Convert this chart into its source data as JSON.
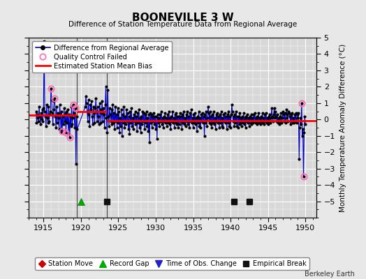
{
  "title": "BOONEVILLE 3 W",
  "subtitle": "Difference of Station Temperature Data from Regional Average",
  "ylabel": "Monthly Temperature Anomaly Difference (°C)",
  "xlim": [
    1913.0,
    1951.5
  ],
  "ylim": [
    -6,
    5
  ],
  "yticks": [
    -5,
    -4,
    -3,
    -2,
    -1,
    0,
    1,
    2,
    3,
    4,
    5
  ],
  "xticks": [
    1915,
    1920,
    1925,
    1930,
    1935,
    1940,
    1945,
    1950
  ],
  "bg_color": "#e8e8e8",
  "plot_bg_color": "#d8d8d8",
  "grid_color": "#ffffff",
  "line_color": "#0000cc",
  "dot_color": "#000000",
  "bias_color": "#ff0000",
  "qc_color": "#ff69b4",
  "watermark": "Berkeley Earth",
  "segments": [
    {
      "x_start": 1913.0,
      "x_end": 1919.5,
      "bias": 0.28
    },
    {
      "x_start": 1919.5,
      "x_end": 1923.5,
      "bias": 0.48
    },
    {
      "x_start": 1923.5,
      "x_end": 1951.5,
      "bias": -0.08
    }
  ],
  "vertical_lines": [
    1919.5,
    1923.5
  ],
  "record_gap_x": 1920.0,
  "empirical_breaks": [
    1923.5,
    1940.5,
    1942.5
  ],
  "qc_points": [
    [
      1916.0,
      1.9
    ],
    [
      1916.5,
      1.3
    ],
    [
      1917.5,
      -0.7
    ],
    [
      1918.0,
      -0.8
    ],
    [
      1918.5,
      -1.1
    ],
    [
      1919.0,
      0.9
    ],
    [
      1919.25,
      0.7
    ],
    [
      1949.5,
      1.0
    ],
    [
      1949.75,
      -3.5
    ]
  ],
  "data": [
    [
      1914.0,
      0.5
    ],
    [
      1914.083,
      -0.2
    ],
    [
      1914.167,
      0.3
    ],
    [
      1914.25,
      0.1
    ],
    [
      1914.333,
      -0.1
    ],
    [
      1914.417,
      0.8
    ],
    [
      1914.5,
      0.2
    ],
    [
      1914.583,
      -0.3
    ],
    [
      1914.667,
      0.4
    ],
    [
      1914.75,
      0.0
    ],
    [
      1914.833,
      0.6
    ],
    [
      1914.917,
      -0.1
    ],
    [
      1915.0,
      0.7
    ],
    [
      1915.083,
      4.8
    ],
    [
      1915.167,
      0.5
    ],
    [
      1915.25,
      0.2
    ],
    [
      1915.333,
      -0.4
    ],
    [
      1915.417,
      0.9
    ],
    [
      1915.5,
      0.1
    ],
    [
      1915.583,
      -0.2
    ],
    [
      1915.667,
      0.8
    ],
    [
      1915.75,
      -0.1
    ],
    [
      1915.833,
      0.3
    ],
    [
      1915.917,
      0.5
    ],
    [
      1916.0,
      1.9
    ],
    [
      1916.083,
      1.2
    ],
    [
      1916.167,
      0.4
    ],
    [
      1916.25,
      -0.3
    ],
    [
      1916.333,
      0.6
    ],
    [
      1916.417,
      1.1
    ],
    [
      1916.5,
      1.3
    ],
    [
      1916.583,
      0.2
    ],
    [
      1916.667,
      -0.5
    ],
    [
      1916.75,
      0.8
    ],
    [
      1916.833,
      -0.2
    ],
    [
      1916.917,
      0.4
    ],
    [
      1917.0,
      0.1
    ],
    [
      1917.083,
      -0.6
    ],
    [
      1917.167,
      0.9
    ],
    [
      1917.25,
      0.3
    ],
    [
      1917.333,
      -0.8
    ],
    [
      1917.417,
      0.5
    ],
    [
      1917.5,
      -0.7
    ],
    [
      1917.583,
      0.2
    ],
    [
      1917.667,
      -0.3
    ],
    [
      1917.75,
      0.7
    ],
    [
      1917.833,
      -0.1
    ],
    [
      1917.917,
      0.4
    ],
    [
      1918.0,
      -0.8
    ],
    [
      1918.083,
      0.5
    ],
    [
      1918.167,
      -0.2
    ],
    [
      1918.25,
      0.6
    ],
    [
      1918.333,
      -0.9
    ],
    [
      1918.417,
      0.3
    ],
    [
      1918.5,
      -1.1
    ],
    [
      1918.583,
      0.2
    ],
    [
      1918.667,
      -0.4
    ],
    [
      1918.75,
      0.8
    ],
    [
      1918.833,
      -0.3
    ],
    [
      1918.917,
      0.1
    ],
    [
      1919.0,
      0.9
    ],
    [
      1919.083,
      0.4
    ],
    [
      1919.167,
      -0.5
    ],
    [
      1919.25,
      0.7
    ],
    [
      1919.333,
      -2.7
    ],
    [
      1919.417,
      0.2
    ],
    [
      1919.5,
      -0.6
    ],
    [
      1920.583,
      0.8
    ],
    [
      1920.667,
      1.4
    ],
    [
      1920.75,
      1.0
    ],
    [
      1920.833,
      0.5
    ],
    [
      1920.917,
      -0.1
    ],
    [
      1921.0,
      1.2
    ],
    [
      1921.083,
      0.3
    ],
    [
      1921.167,
      -0.4
    ],
    [
      1921.25,
      0.9
    ],
    [
      1921.333,
      0.6
    ],
    [
      1921.417,
      1.1
    ],
    [
      1921.5,
      0.2
    ],
    [
      1921.583,
      -0.3
    ],
    [
      1921.667,
      0.8
    ],
    [
      1921.75,
      0.4
    ],
    [
      1921.833,
      -0.2
    ],
    [
      1921.917,
      0.7
    ],
    [
      1922.0,
      1.3
    ],
    [
      1922.083,
      0.5
    ],
    [
      1922.167,
      -0.1
    ],
    [
      1922.25,
      0.8
    ],
    [
      1922.333,
      0.2
    ],
    [
      1922.417,
      -0.3
    ],
    [
      1922.5,
      1.0
    ],
    [
      1922.583,
      0.6
    ],
    [
      1922.667,
      -0.2
    ],
    [
      1922.75,
      0.4
    ],
    [
      1922.833,
      1.1
    ],
    [
      1922.917,
      -0.1
    ],
    [
      1923.0,
      0.7
    ],
    [
      1923.083,
      0.3
    ],
    [
      1923.167,
      -0.5
    ],
    [
      1923.25,
      0.9
    ],
    [
      1923.333,
      2.0
    ],
    [
      1923.417,
      0.1
    ],
    [
      1923.5,
      -0.8
    ],
    [
      1923.583,
      1.8
    ],
    [
      1923.667,
      0.2
    ],
    [
      1923.75,
      -0.4
    ],
    [
      1923.833,
      0.7
    ],
    [
      1923.917,
      0.3
    ],
    [
      1924.0,
      -0.1
    ],
    [
      1924.083,
      0.6
    ],
    [
      1924.167,
      -0.3
    ],
    [
      1924.25,
      0.9
    ],
    [
      1924.333,
      -0.2
    ],
    [
      1924.417,
      0.4
    ],
    [
      1924.5,
      -0.6
    ],
    [
      1924.583,
      0.8
    ],
    [
      1924.667,
      -0.1
    ],
    [
      1924.75,
      0.3
    ],
    [
      1924.833,
      -0.5
    ],
    [
      1924.917,
      0.7
    ],
    [
      1925.0,
      -0.2
    ],
    [
      1925.083,
      0.5
    ],
    [
      1925.167,
      -0.8
    ],
    [
      1925.25,
      0.1
    ],
    [
      1925.333,
      -0.4
    ],
    [
      1925.417,
      0.6
    ],
    [
      1925.5,
      -1.0
    ],
    [
      1925.583,
      0.3
    ],
    [
      1925.667,
      -0.2
    ],
    [
      1925.75,
      0.8
    ],
    [
      1925.833,
      -0.5
    ],
    [
      1925.917,
      0.2
    ],
    [
      1926.0,
      -0.3
    ],
    [
      1926.083,
      0.6
    ],
    [
      1926.167,
      -0.1
    ],
    [
      1926.25,
      0.4
    ],
    [
      1926.333,
      -0.6
    ],
    [
      1926.417,
      0.2
    ],
    [
      1926.5,
      -0.9
    ],
    [
      1926.583,
      0.5
    ],
    [
      1926.667,
      -0.2
    ],
    [
      1926.75,
      0.7
    ],
    [
      1926.833,
      -0.4
    ],
    [
      1926.917,
      0.1
    ],
    [
      1927.0,
      -0.6
    ],
    [
      1927.083,
      0.3
    ],
    [
      1927.167,
      -0.1
    ],
    [
      1927.25,
      0.5
    ],
    [
      1927.333,
      -0.3
    ],
    [
      1927.417,
      0.2
    ],
    [
      1927.5,
      -0.7
    ],
    [
      1927.583,
      0.4
    ],
    [
      1927.667,
      -0.2
    ],
    [
      1927.75,
      0.6
    ],
    [
      1927.833,
      -0.5
    ],
    [
      1927.917,
      0.1
    ],
    [
      1928.0,
      -0.8
    ],
    [
      1928.083,
      0.2
    ],
    [
      1928.167,
      -0.3
    ],
    [
      1928.25,
      0.5
    ],
    [
      1928.333,
      -0.1
    ],
    [
      1928.417,
      0.4
    ],
    [
      1928.5,
      -0.6
    ],
    [
      1928.583,
      0.3
    ],
    [
      1928.667,
      -0.2
    ],
    [
      1928.75,
      0.5
    ],
    [
      1928.833,
      -0.4
    ],
    [
      1928.917,
      0.1
    ],
    [
      1929.0,
      -0.7
    ],
    [
      1929.083,
      0.3
    ],
    [
      1929.167,
      -1.4
    ],
    [
      1929.25,
      0.4
    ],
    [
      1929.333,
      -0.2
    ],
    [
      1929.417,
      0.3
    ],
    [
      1929.5,
      -0.5
    ],
    [
      1929.583,
      0.2
    ],
    [
      1929.667,
      -0.1
    ],
    [
      1929.75,
      0.4
    ],
    [
      1929.833,
      -0.3
    ],
    [
      1929.917,
      0.2
    ],
    [
      1930.0,
      -0.6
    ],
    [
      1930.083,
      0.2
    ],
    [
      1930.167,
      -1.2
    ],
    [
      1930.25,
      0.3
    ],
    [
      1930.333,
      -0.2
    ],
    [
      1930.417,
      0.1
    ],
    [
      1930.5,
      -0.4
    ],
    [
      1930.583,
      0.3
    ],
    [
      1930.667,
      -0.1
    ],
    [
      1930.75,
      0.5
    ],
    [
      1930.833,
      -0.3
    ],
    [
      1930.917,
      0.1
    ],
    [
      1931.0,
      -0.5
    ],
    [
      1931.083,
      0.2
    ],
    [
      1931.167,
      -0.1
    ],
    [
      1931.25,
      0.4
    ],
    [
      1931.333,
      -0.2
    ],
    [
      1931.417,
      0.1
    ],
    [
      1931.5,
      -0.4
    ],
    [
      1931.583,
      0.3
    ],
    [
      1931.667,
      -0.2
    ],
    [
      1931.75,
      0.5
    ],
    [
      1931.833,
      -0.3
    ],
    [
      1931.917,
      0.1
    ],
    [
      1932.0,
      -0.6
    ],
    [
      1932.083,
      0.2
    ],
    [
      1932.167,
      -0.1
    ],
    [
      1932.25,
      0.5
    ],
    [
      1932.333,
      -0.2
    ],
    [
      1932.417,
      0.1
    ],
    [
      1932.5,
      -0.5
    ],
    [
      1932.583,
      0.3
    ],
    [
      1932.667,
      -0.2
    ],
    [
      1932.75,
      0.4
    ],
    [
      1932.833,
      -0.3
    ],
    [
      1932.917,
      0.2
    ],
    [
      1933.0,
      -0.5
    ],
    [
      1933.083,
      0.2
    ],
    [
      1933.167,
      -0.3
    ],
    [
      1933.25,
      0.4
    ],
    [
      1933.333,
      -0.1
    ],
    [
      1933.417,
      0.2
    ],
    [
      1933.5,
      -0.6
    ],
    [
      1933.583,
      0.3
    ],
    [
      1933.667,
      -0.2
    ],
    [
      1933.75,
      0.5
    ],
    [
      1933.833,
      -0.3
    ],
    [
      1933.917,
      0.1
    ],
    [
      1934.0,
      -0.4
    ],
    [
      1934.083,
      0.3
    ],
    [
      1934.167,
      -0.1
    ],
    [
      1934.25,
      0.5
    ],
    [
      1934.333,
      -0.3
    ],
    [
      1934.417,
      0.2
    ],
    [
      1934.5,
      -0.5
    ],
    [
      1934.583,
      0.4
    ],
    [
      1934.667,
      -0.1
    ],
    [
      1934.75,
      0.6
    ],
    [
      1934.833,
      -0.2
    ],
    [
      1934.917,
      0.1
    ],
    [
      1935.0,
      -0.5
    ],
    [
      1935.083,
      0.3
    ],
    [
      1935.167,
      -0.2
    ],
    [
      1935.25,
      0.4
    ],
    [
      1935.333,
      -0.3
    ],
    [
      1935.417,
      0.1
    ],
    [
      1935.5,
      -0.7
    ],
    [
      1935.583,
      0.2
    ],
    [
      1935.667,
      -0.2
    ],
    [
      1935.75,
      0.5
    ],
    [
      1935.833,
      -0.4
    ],
    [
      1935.917,
      0.1
    ],
    [
      1936.0,
      -0.5
    ],
    [
      1936.083,
      0.3
    ],
    [
      1936.167,
      -0.1
    ],
    [
      1936.25,
      0.4
    ],
    [
      1936.333,
      -0.2
    ],
    [
      1936.417,
      0.2
    ],
    [
      1936.5,
      -1.0
    ],
    [
      1936.583,
      0.3
    ],
    [
      1936.667,
      -0.2
    ],
    [
      1936.75,
      0.5
    ],
    [
      1936.833,
      -0.4
    ],
    [
      1936.917,
      0.1
    ],
    [
      1937.0,
      0.8
    ],
    [
      1937.083,
      0.4
    ],
    [
      1937.167,
      -0.2
    ],
    [
      1937.25,
      0.5
    ],
    [
      1937.333,
      -0.3
    ],
    [
      1937.417,
      0.2
    ],
    [
      1937.5,
      -0.5
    ],
    [
      1937.583,
      0.3
    ],
    [
      1937.667,
      -0.2
    ],
    [
      1937.75,
      0.5
    ],
    [
      1937.833,
      -0.3
    ],
    [
      1937.917,
      0.1
    ],
    [
      1938.0,
      -0.6
    ],
    [
      1938.083,
      0.3
    ],
    [
      1938.167,
      -0.1
    ],
    [
      1938.25,
      0.4
    ],
    [
      1938.333,
      -0.2
    ],
    [
      1938.417,
      0.2
    ],
    [
      1938.5,
      -0.5
    ],
    [
      1938.583,
      0.3
    ],
    [
      1938.667,
      -0.2
    ],
    [
      1938.75,
      0.5
    ],
    [
      1938.833,
      -0.4
    ],
    [
      1938.917,
      0.1
    ],
    [
      1939.0,
      -0.5
    ],
    [
      1939.083,
      0.3
    ],
    [
      1939.167,
      -0.1
    ],
    [
      1939.25,
      0.4
    ],
    [
      1939.333,
      -0.2
    ],
    [
      1939.417,
      0.2
    ],
    [
      1939.5,
      -0.6
    ],
    [
      1939.583,
      0.3
    ],
    [
      1939.667,
      -0.2
    ],
    [
      1939.75,
      0.5
    ],
    [
      1939.833,
      -0.4
    ],
    [
      1939.917,
      0.2
    ],
    [
      1940.0,
      -0.5
    ],
    [
      1940.083,
      0.3
    ],
    [
      1940.167,
      0.9
    ],
    [
      1940.25,
      0.5
    ],
    [
      1940.333,
      -0.1
    ],
    [
      1940.417,
      0.2
    ],
    [
      1940.5,
      -0.4
    ],
    [
      1940.583,
      0.3
    ],
    [
      1940.667,
      -0.2
    ],
    [
      1940.75,
      0.5
    ],
    [
      1940.833,
      -0.4
    ],
    [
      1940.917,
      0.2
    ],
    [
      1941.0,
      -0.5
    ],
    [
      1941.083,
      0.2
    ],
    [
      1941.167,
      -0.3
    ],
    [
      1941.25,
      0.4
    ],
    [
      1941.333,
      -0.2
    ],
    [
      1941.417,
      0.1
    ],
    [
      1941.5,
      -0.4
    ],
    [
      1941.583,
      0.2
    ],
    [
      1941.667,
      -0.2
    ],
    [
      1941.75,
      0.4
    ],
    [
      1941.833,
      -0.3
    ],
    [
      1941.917,
      0.1
    ],
    [
      1942.0,
      -0.5
    ],
    [
      1942.083,
      0.2
    ],
    [
      1942.167,
      -0.1
    ],
    [
      1942.25,
      0.3
    ],
    [
      1942.333,
      -0.2
    ],
    [
      1942.417,
      0.1
    ],
    [
      1942.5,
      -0.4
    ],
    [
      1942.583,
      0.2
    ],
    [
      1942.667,
      -0.2
    ],
    [
      1942.75,
      0.3
    ],
    [
      1942.833,
      -0.3
    ],
    [
      1942.917,
      0.1
    ],
    [
      1943.0,
      -0.2
    ],
    [
      1943.083,
      0.3
    ],
    [
      1943.167,
      -0.1
    ],
    [
      1943.25,
      0.4
    ],
    [
      1943.333,
      -0.2
    ],
    [
      1943.417,
      0.1
    ],
    [
      1943.5,
      -0.3
    ],
    [
      1943.583,
      0.2
    ],
    [
      1943.667,
      -0.1
    ],
    [
      1943.75,
      0.4
    ],
    [
      1943.833,
      -0.2
    ],
    [
      1943.917,
      0.1
    ],
    [
      1944.0,
      -0.3
    ],
    [
      1944.083,
      0.2
    ],
    [
      1944.167,
      -0.1
    ],
    [
      1944.25,
      0.4
    ],
    [
      1944.333,
      -0.2
    ],
    [
      1944.417,
      0.1
    ],
    [
      1944.5,
      -0.3
    ],
    [
      1944.583,
      0.3
    ],
    [
      1944.667,
      -0.1
    ],
    [
      1944.75,
      0.4
    ],
    [
      1944.833,
      -0.2
    ],
    [
      1944.917,
      0.1
    ],
    [
      1945.0,
      -0.3
    ],
    [
      1945.083,
      0.2
    ],
    [
      1945.167,
      -0.1
    ],
    [
      1945.25,
      0.3
    ],
    [
      1945.333,
      -0.2
    ],
    [
      1945.417,
      0.1
    ],
    [
      1945.5,
      0.7
    ],
    [
      1945.583,
      0.2
    ],
    [
      1945.667,
      -0.1
    ],
    [
      1945.75,
      0.3
    ],
    [
      1945.833,
      0.7
    ],
    [
      1945.917,
      0.1
    ],
    [
      1946.0,
      0.5
    ],
    [
      1946.083,
      0.2
    ],
    [
      1946.167,
      -0.1
    ],
    [
      1946.25,
      0.3
    ],
    [
      1946.333,
      -0.2
    ],
    [
      1946.417,
      0.1
    ],
    [
      1946.5,
      -0.3
    ],
    [
      1946.583,
      0.2
    ],
    [
      1946.667,
      -0.1
    ],
    [
      1946.75,
      0.4
    ],
    [
      1946.833,
      -0.2
    ],
    [
      1946.917,
      0.1
    ],
    [
      1947.0,
      0.5
    ],
    [
      1947.083,
      0.3
    ],
    [
      1947.167,
      -0.1
    ],
    [
      1947.25,
      0.4
    ],
    [
      1947.333,
      -0.2
    ],
    [
      1947.417,
      0.1
    ],
    [
      1947.5,
      0.6
    ],
    [
      1947.583,
      0.3
    ],
    [
      1947.667,
      -0.1
    ],
    [
      1947.75,
      0.5
    ],
    [
      1947.833,
      0.4
    ],
    [
      1947.917,
      0.2
    ],
    [
      1948.0,
      -0.3
    ],
    [
      1948.083,
      0.3
    ],
    [
      1948.167,
      -0.1
    ],
    [
      1948.25,
      0.4
    ],
    [
      1948.333,
      -0.2
    ],
    [
      1948.417,
      0.1
    ],
    [
      1948.5,
      -0.2
    ],
    [
      1948.583,
      0.3
    ],
    [
      1948.667,
      -0.1
    ],
    [
      1948.75,
      0.4
    ],
    [
      1948.833,
      -0.2
    ],
    [
      1948.917,
      0.1
    ],
    [
      1949.0,
      0.3
    ],
    [
      1949.083,
      0.4
    ],
    [
      1949.167,
      -2.4
    ],
    [
      1949.25,
      -0.5
    ],
    [
      1949.333,
      0.1
    ],
    [
      1949.417,
      -0.3
    ],
    [
      1949.5,
      1.0
    ],
    [
      1949.583,
      -1.0
    ],
    [
      1949.667,
      -0.6
    ],
    [
      1949.75,
      -3.5
    ],
    [
      1949.833,
      -0.8
    ],
    [
      1949.917,
      0.2
    ],
    [
      1950.0,
      -0.3
    ]
  ]
}
